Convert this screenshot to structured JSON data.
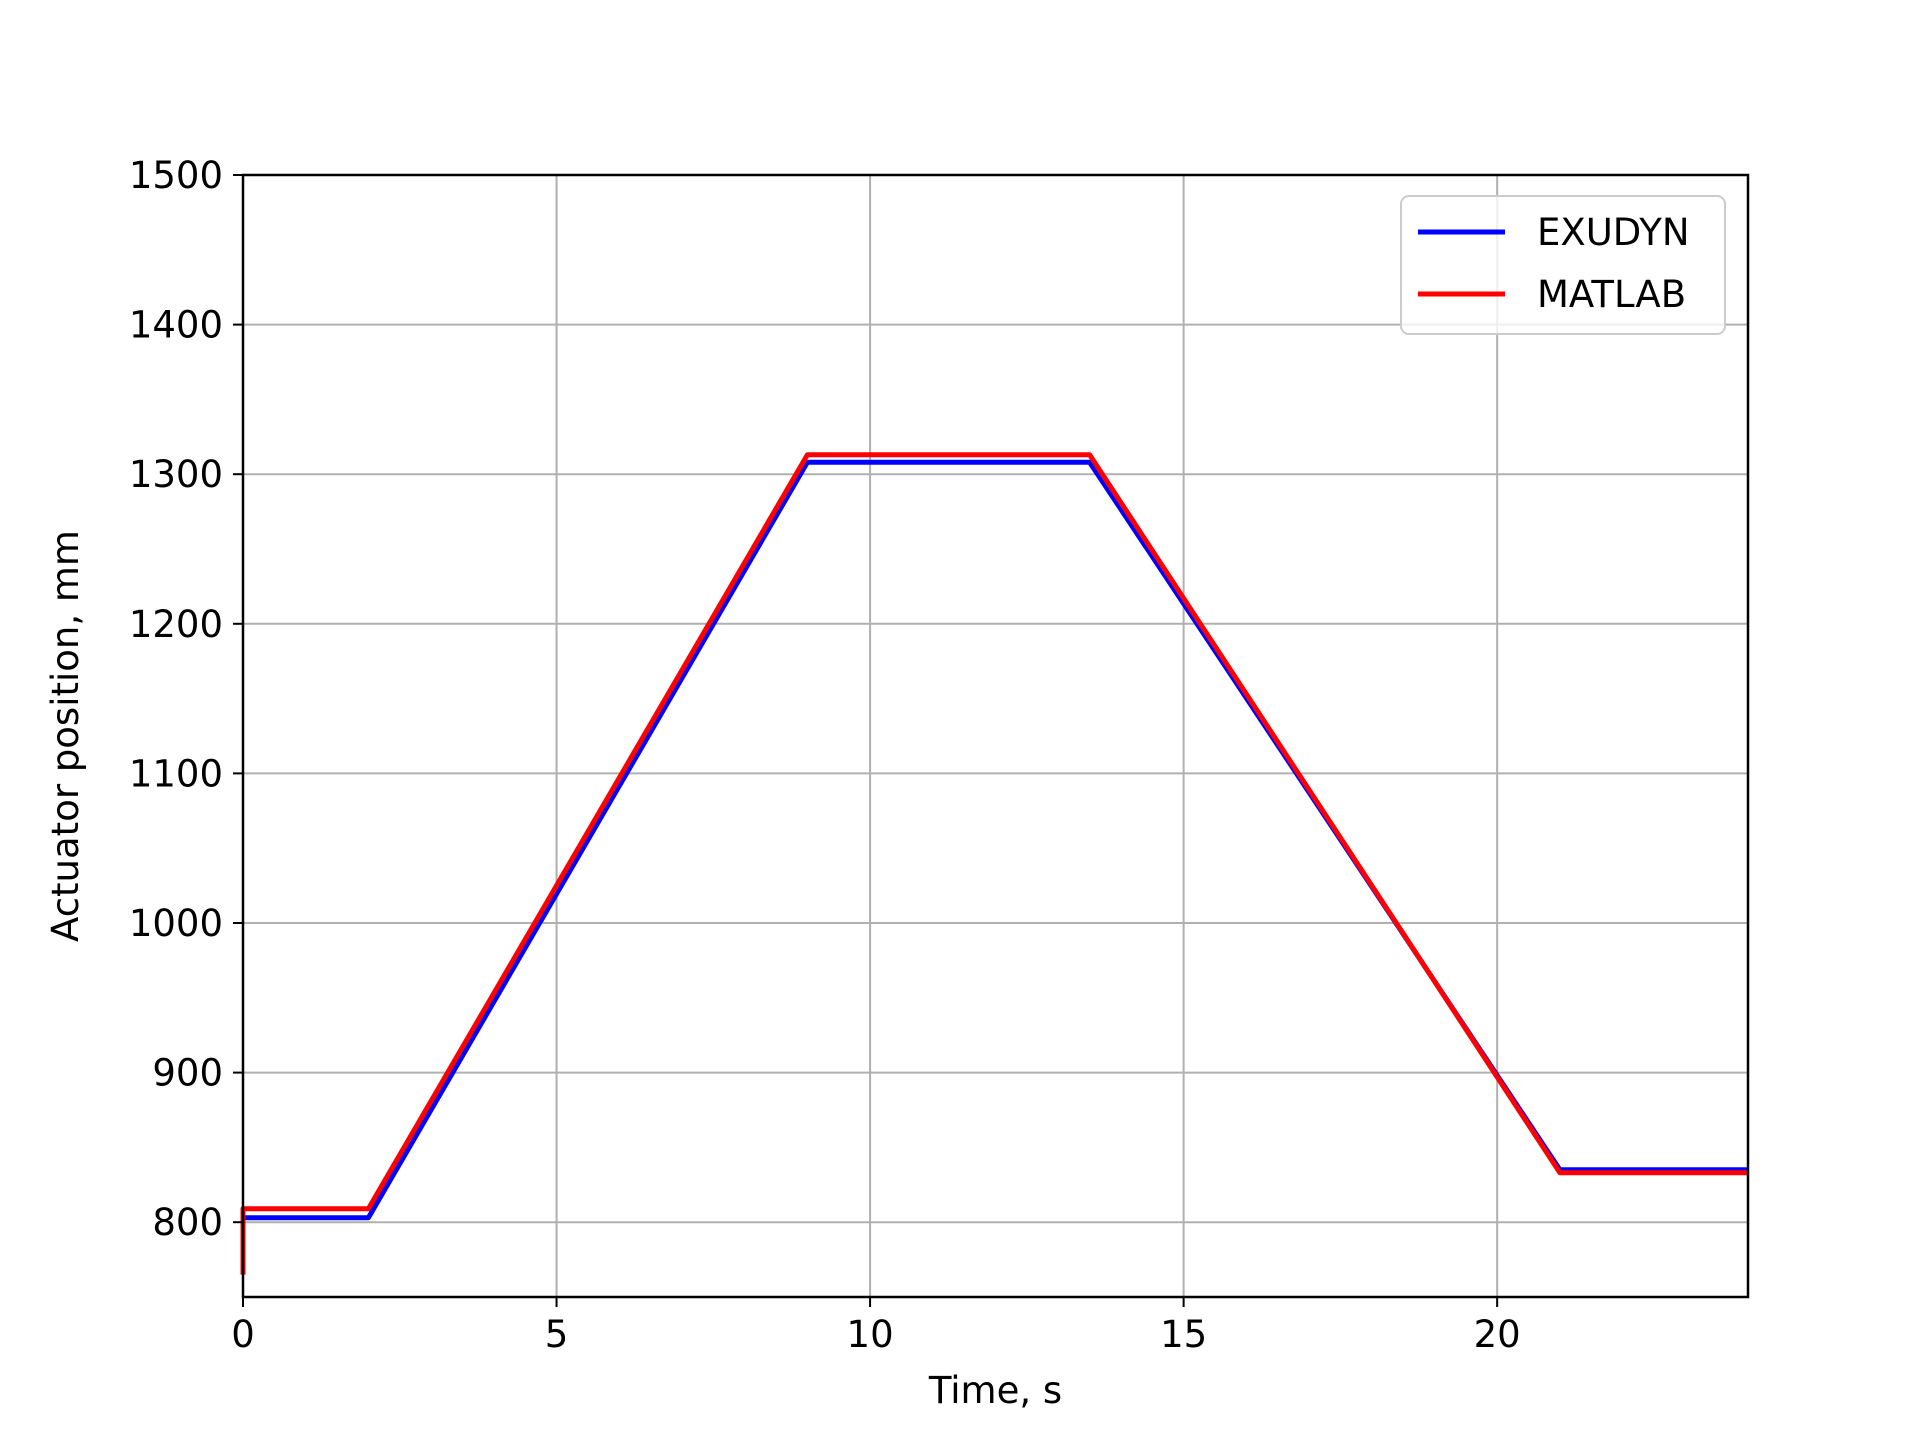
{
  "chart_data": {
    "type": "line",
    "title": "",
    "xlabel": "Time, s",
    "ylabel": "Actuator position, mm",
    "xlim": [
      0,
      24
    ],
    "ylim": [
      750,
      1500
    ],
    "xticks": [
      0,
      5,
      10,
      15,
      20
    ],
    "yticks": [
      800,
      900,
      1000,
      1100,
      1200,
      1300,
      1400,
      1500
    ],
    "grid": true,
    "legend_position": "top-right",
    "series": [
      {
        "name": "EXUDYN",
        "color": "#0000ff",
        "x": [
          0,
          2.0,
          9.0,
          13.5,
          21.0,
          24.0
        ],
        "y": [
          803,
          803,
          1308,
          1308,
          835,
          835
        ]
      },
      {
        "name": "MATLAB",
        "color": "#ff0000",
        "x": [
          0,
          0,
          2.0,
          9.0,
          13.5,
          21.0,
          24.0
        ],
        "y": [
          765,
          809,
          809,
          1313,
          1313,
          833,
          833
        ]
      }
    ]
  }
}
